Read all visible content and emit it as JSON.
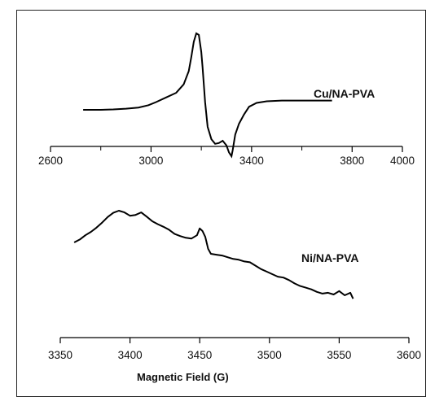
{
  "chart_data": [
    {
      "type": "line",
      "title": "",
      "xlabel": "",
      "ylabel": "",
      "xlim": [
        2600,
        4000
      ],
      "ticks": [
        2600,
        3000,
        3400,
        3800,
        4000
      ],
      "tick_labels": [
        "2600",
        "3000",
        "3400",
        "3800",
        "4000"
      ],
      "minor_ticks": [
        2800,
        3200,
        3600
      ],
      "grid": false,
      "series": [
        {
          "name": "Cu/NA-PVA",
          "color": "#000000",
          "x": [
            2730,
            2800,
            2850,
            2900,
            2950,
            2990,
            3020,
            3060,
            3100,
            3130,
            3150,
            3160,
            3170,
            3180,
            3190,
            3200,
            3205,
            3215,
            3225,
            3240,
            3255,
            3270,
            3285,
            3300,
            3310,
            3320,
            3325,
            3335,
            3350,
            3370,
            3390,
            3420,
            3460,
            3520,
            3600,
            3720
          ],
          "y": [
            0.0,
            0.0,
            0.005,
            0.015,
            0.03,
            0.06,
            0.1,
            0.16,
            0.22,
            0.33,
            0.5,
            0.68,
            0.88,
            0.99,
            0.97,
            0.75,
            0.55,
            0.1,
            -0.22,
            -0.38,
            -0.44,
            -0.43,
            -0.4,
            -0.46,
            -0.55,
            -0.6,
            -0.52,
            -0.32,
            -0.18,
            -0.06,
            0.04,
            0.09,
            0.11,
            0.12,
            0.12,
            0.12
          ]
        }
      ]
    },
    {
      "type": "line",
      "title": "",
      "xlabel": "Magnetic Field (G)",
      "ylabel": "",
      "xlim": [
        3350,
        3600
      ],
      "ticks": [
        3350,
        3400,
        3450,
        3500,
        3550,
        3600
      ],
      "tick_labels": [
        "3350",
        "3400",
        "3450",
        "3500",
        "3550",
        "3600"
      ],
      "grid": false,
      "series": [
        {
          "name": "Ni/NA-PVA",
          "color": "#000000",
          "x": [
            3360,
            3364,
            3368,
            3372,
            3376,
            3380,
            3384,
            3388,
            3392,
            3396,
            3400,
            3404,
            3408,
            3412,
            3416,
            3420,
            3424,
            3428,
            3432,
            3436,
            3440,
            3444,
            3448,
            3450,
            3452,
            3454,
            3456,
            3458,
            3462,
            3466,
            3470,
            3474,
            3478,
            3482,
            3486,
            3490,
            3494,
            3498,
            3502,
            3506,
            3510,
            3514,
            3518,
            3522,
            3526,
            3530,
            3534,
            3538,
            3542,
            3546,
            3550,
            3554,
            3558,
            3560
          ],
          "y": [
            0.25,
            0.32,
            0.42,
            0.5,
            0.6,
            0.72,
            0.85,
            0.95,
            1.0,
            0.96,
            0.88,
            0.9,
            0.96,
            0.86,
            0.75,
            0.68,
            0.62,
            0.55,
            0.45,
            0.4,
            0.36,
            0.34,
            0.42,
            0.58,
            0.52,
            0.38,
            0.1,
            -0.02,
            -0.04,
            -0.06,
            -0.1,
            -0.14,
            -0.16,
            -0.2,
            -0.22,
            -0.3,
            -0.38,
            -0.44,
            -0.5,
            -0.56,
            -0.58,
            -0.64,
            -0.72,
            -0.78,
            -0.82,
            -0.86,
            -0.92,
            -0.96,
            -0.94,
            -0.98,
            -0.9,
            -1.0,
            -0.94,
            -1.08
          ]
        }
      ]
    }
  ]
}
